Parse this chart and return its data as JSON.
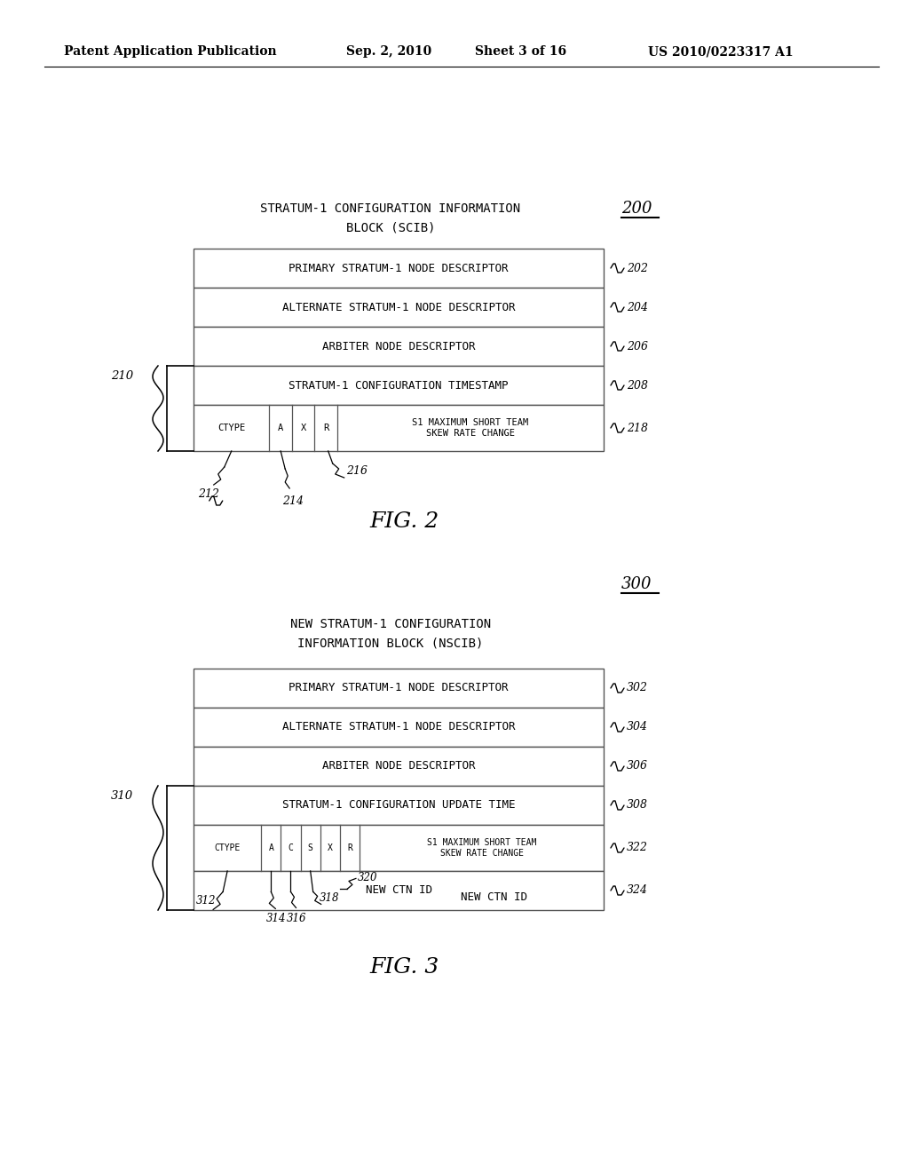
{
  "background_color": "#ffffff",
  "header_text": "Patent Application Publication",
  "header_date": "Sep. 2, 2010",
  "header_sheet": "Sheet 3 of 16",
  "header_patent": "US 2010/0223317 A1",
  "fig2_title_line1": "STRATUM-1 CONFIGURATION INFORMATION",
  "fig2_title_line2": "BLOCK (SCIB)",
  "fig2_ref": "200",
  "fig2_rows": [
    {
      "label": "PRIMARY STRATUM-1 NODE DESCRIPTOR",
      "ref": "202"
    },
    {
      "label": "ALTERNATE STRATUM-1 NODE DESCRIPTOR",
      "ref": "204"
    },
    {
      "label": "ARBITER NODE DESCRIPTOR",
      "ref": "206"
    },
    {
      "label": "STRATUM-1 CONFIGURATION TIMESTAMP",
      "ref": "208"
    }
  ],
  "fig2_bottom_cells": [
    "CTYPE",
    "A",
    "X",
    "R"
  ],
  "fig2_bottom_text": "S1 MAXIMUM SHORT TEAM\nSKEW RATE CHANGE",
  "fig2_bottom_ref": "218",
  "fig2_bracket_ref": "210",
  "fig2_caption": "FIG. 2",
  "fig3_title_line1": "NEW STRATUM-1 CONFIGURATION",
  "fig3_title_line2": "INFORMATION BLOCK (NSCIB)",
  "fig3_ref": "300",
  "fig3_rows": [
    {
      "label": "PRIMARY STRATUM-1 NODE DESCRIPTOR",
      "ref": "302"
    },
    {
      "label": "ALTERNATE STRATUM-1 NODE DESCRIPTOR",
      "ref": "304"
    },
    {
      "label": "ARBITER NODE DESCRIPTOR",
      "ref": "306"
    },
    {
      "label": "STRATUM-1 CONFIGURATION UPDATE TIME",
      "ref": "308"
    }
  ],
  "fig3_bottom_cells": [
    "CTYPE",
    "A",
    "C",
    "S",
    "X",
    "R"
  ],
  "fig3_bottom_text": "S1 MAXIMUM SHORT TEAM\nSKEW RATE CHANGE",
  "fig3_bottom_ref": "322",
  "fig3_bracket_ref": "310",
  "fig3_last_label": "NEW CTN ID",
  "fig3_last_ref": "324",
  "fig3_caption": "FIG. 3"
}
